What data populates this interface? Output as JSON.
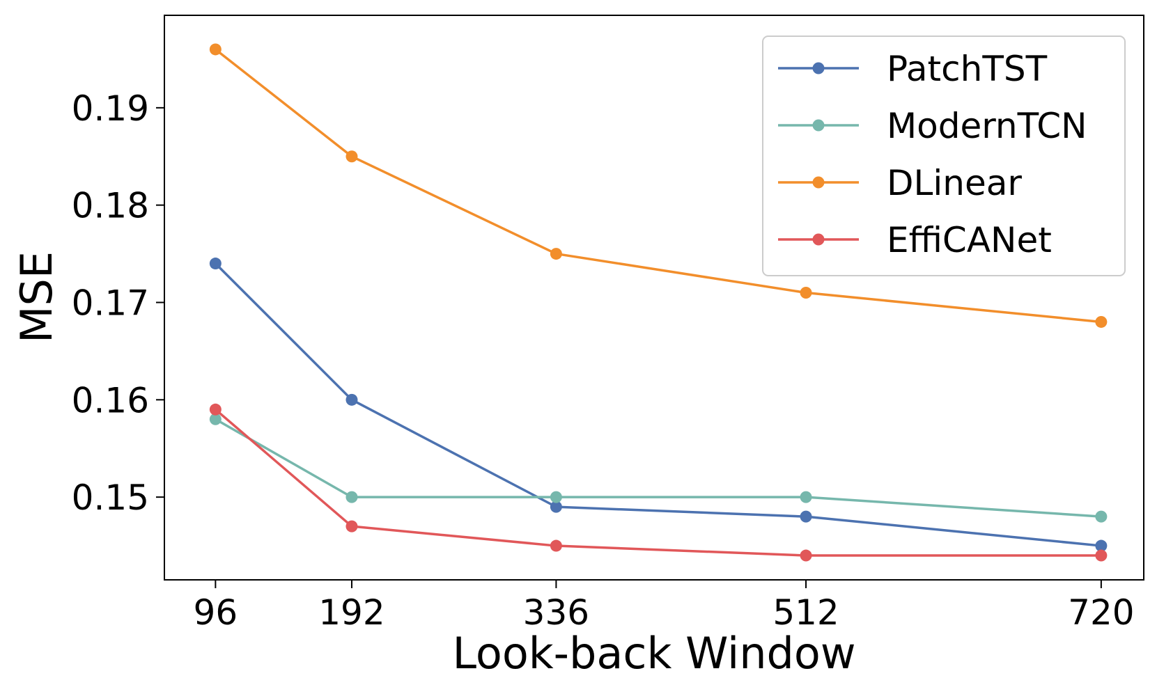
{
  "chart_data": {
    "type": "line",
    "title": "",
    "xlabel": "Look-back Window",
    "ylabel": "MSE",
    "x": [
      96,
      192,
      336,
      512,
      720
    ],
    "x_ticks": [
      "96",
      "192",
      "336",
      "512",
      "720"
    ],
    "x_scale": "categorical-positioned",
    "x_positions": [
      96,
      192,
      336,
      512,
      720
    ],
    "xlim": [
      60,
      750
    ],
    "ylim": [
      0.1415,
      0.1995
    ],
    "y_ticks": [
      0.15,
      0.16,
      0.17,
      0.18,
      0.19
    ],
    "y_tick_labels": [
      "0.15",
      "0.16",
      "0.17",
      "0.18",
      "0.19"
    ],
    "grid": false,
    "legend_position": "top-right",
    "series": [
      {
        "name": "PatchTST",
        "color": "#4c72b0",
        "values": [
          0.174,
          0.16,
          0.149,
          0.148,
          0.145
        ]
      },
      {
        "name": "ModernTCN",
        "color": "#76b7ac",
        "values": [
          0.158,
          0.15,
          0.15,
          0.15,
          0.148
        ]
      },
      {
        "name": "DLinear",
        "color": "#f28e2b",
        "values": [
          0.196,
          0.185,
          0.175,
          0.171,
          0.168
        ]
      },
      {
        "name": "EffiCANet",
        "color": "#e15759",
        "values": [
          0.159,
          0.147,
          0.145,
          0.144,
          0.144
        ]
      }
    ]
  }
}
